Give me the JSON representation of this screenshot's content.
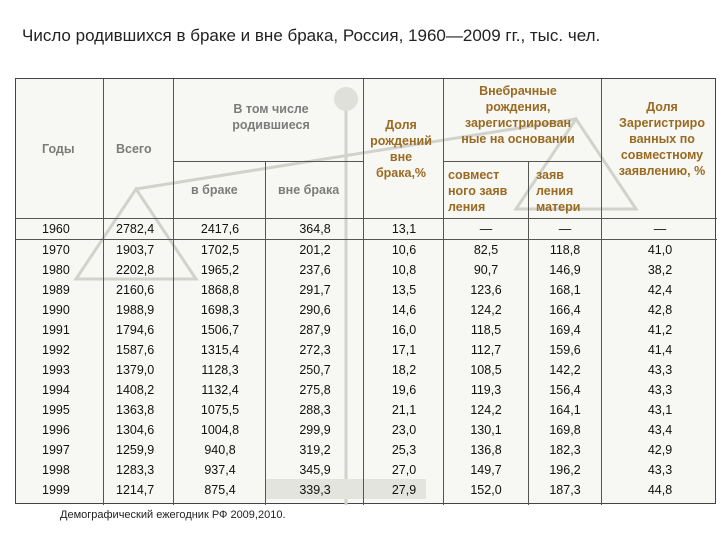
{
  "title": "Число родившихся в браке и вне брака, Россия, 1960—2009 гг., тыс. чел.",
  "headers": {
    "years": "Годы",
    "total": "Всего",
    "including": "В том числе родившиеся",
    "in_marriage": "в браке",
    "out_marriage": "вне брака",
    "share": "Доля рождений вне брака,%",
    "extramarital": "Внебрачные рождения, зарегистрирован ные на основании",
    "joint": "совмест ного заяв ления",
    "mother": "заяв ления матери",
    "share_joint": "Доля Зарегистриро ванных по совместному заявлению, %"
  },
  "rows": [
    {
      "year": "1960",
      "total": "2782,4",
      "in": "2417,6",
      "out": "364,8",
      "share": "13,1",
      "joint": "—",
      "mother": "—",
      "sj": "—"
    },
    {
      "year": "1970",
      "total": "1903,7",
      "in": "1702,5",
      "out": "201,2",
      "share": "10,6",
      "joint": "82,5",
      "mother": "118,8",
      "sj": "41,0"
    },
    {
      "year": "1980",
      "total": "2202,8",
      "in": "1965,2",
      "out": "237,6",
      "share": "10,8",
      "joint": "90,7",
      "mother": "146,9",
      "sj": "38,2"
    },
    {
      "year": "1989",
      "total": "2160,6",
      "in": "1868,8",
      "out": "291,7",
      "share": "13,5",
      "joint": "123,6",
      "mother": "168,1",
      "sj": "42,4"
    },
    {
      "year": "1990",
      "total": "1988,9",
      "in": "1698,3",
      "out": "290,6",
      "share": "14,6",
      "joint": "124,2",
      "mother": "166,4",
      "sj": "42,8"
    },
    {
      "year": "1991",
      "total": "1794,6",
      "in": "1506,7",
      "out": "287,9",
      "share": "16,0",
      "joint": "118,5",
      "mother": "169,4",
      "sj": "41,2"
    },
    {
      "year": "1992",
      "total": "1587,6",
      "in": "1315,4",
      "out": "272,3",
      "share": "17,1",
      "joint": "112,7",
      "mother": "159,6",
      "sj": "41,4"
    },
    {
      "year": "1993",
      "total": "1379,0",
      "in": "1128,3",
      "out": "250,7",
      "share": "18,2",
      "joint": "108,5",
      "mother": "142,2",
      "sj": "43,3"
    },
    {
      "year": "1994",
      "total": "1408,2",
      "in": "1132,4",
      "out": "275,8",
      "share": "19,6",
      "joint": "119,3",
      "mother": "156,4",
      "sj": "43,3"
    },
    {
      "year": "1995",
      "total": "1363,8",
      "in": "1075,5",
      "out": "288,3",
      "share": "21,1",
      "joint": "124,2",
      "mother": "164,1",
      "sj": "43,1"
    },
    {
      "year": "1996",
      "total": "1304,6",
      "in": "1004,8",
      "out": "299,9",
      "share": "23,0",
      "joint": "130,1",
      "mother": "169,8",
      "sj": "43,4"
    },
    {
      "year": "1997",
      "total": "1259,9",
      "in": "940,8",
      "out": "319,2",
      "share": "25,3",
      "joint": "136,8",
      "mother": "182,3",
      "sj": "42,9"
    },
    {
      "year": "1998",
      "total": "1283,3",
      "in": "937,4",
      "out": "345,9",
      "share": "27,0",
      "joint": "149,7",
      "mother": "196,2",
      "sj": "43,3"
    },
    {
      "year": "1999",
      "total": "1214,7",
      "in": "875,4",
      "out": "339,3",
      "share": "27,9",
      "joint": "152,0",
      "mother": "187,3",
      "sj": "44,8"
    }
  ],
  "source": "Демографический ежегодник РФ 2009,2010."
}
